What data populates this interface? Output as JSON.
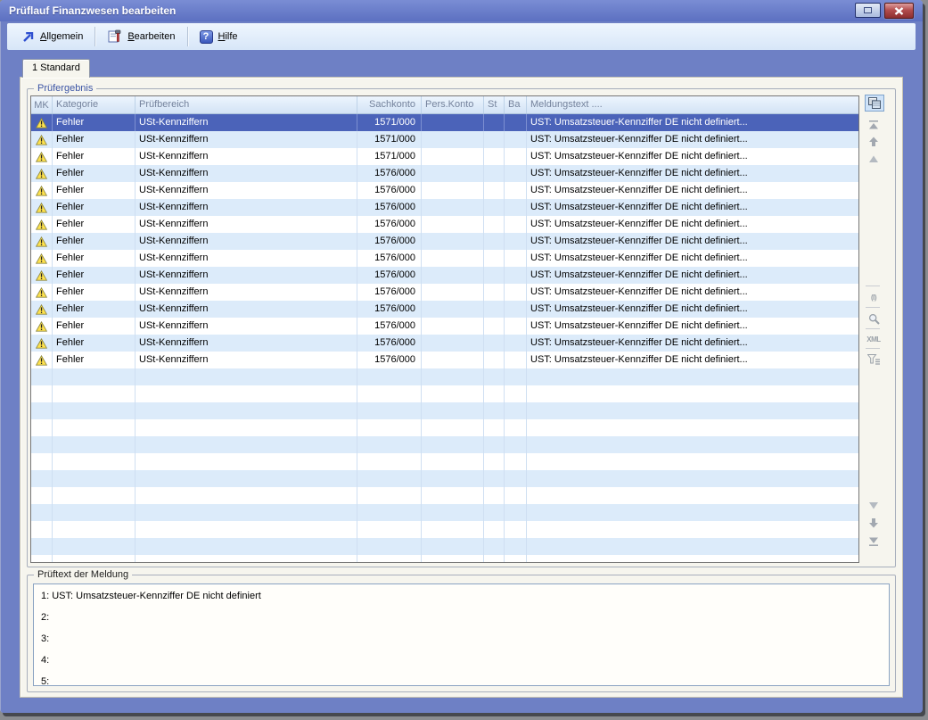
{
  "window": {
    "title": "Prüflauf Finanzwesen bearbeiten"
  },
  "toolbar": {
    "items": [
      {
        "name": "allgemein",
        "mnemonic": "A",
        "rest": "llgemein",
        "icon": "arrow-up-right-icon"
      },
      {
        "name": "bearbeiten",
        "mnemonic": "B",
        "rest": "earbeiten",
        "icon": "edit-tool-icon"
      },
      {
        "name": "hilfe",
        "mnemonic": "H",
        "rest": "ilfe",
        "icon": "help-icon",
        "glyph": "?"
      }
    ]
  },
  "tab": {
    "label": "1 Standard"
  },
  "result_group": {
    "title": "Prüfergebnis",
    "columns": [
      "MK",
      "Kategorie",
      "Prüfbereich",
      "Sachkonto",
      "Pers.Konto",
      "St",
      "Ba",
      "Meldungstext ...."
    ],
    "rows": [
      {
        "selected": true,
        "mk": "warning",
        "kategorie": "Fehler",
        "pruefbereich": "USt-Kennziffern",
        "sachkonto": "1571/000",
        "pers_konto": "",
        "st": "",
        "ba": "",
        "meldungstext": "UST: Umsatzsteuer-Kennziffer DE nicht definiert..."
      },
      {
        "selected": false,
        "mk": "warning",
        "kategorie": "Fehler",
        "pruefbereich": "USt-Kennziffern",
        "sachkonto": "1571/000",
        "pers_konto": "",
        "st": "",
        "ba": "",
        "meldungstext": "UST: Umsatzsteuer-Kennziffer DE nicht definiert..."
      },
      {
        "selected": false,
        "mk": "warning",
        "kategorie": "Fehler",
        "pruefbereich": "USt-Kennziffern",
        "sachkonto": "1571/000",
        "pers_konto": "",
        "st": "",
        "ba": "",
        "meldungstext": "UST: Umsatzsteuer-Kennziffer DE nicht definiert..."
      },
      {
        "selected": false,
        "mk": "warning",
        "kategorie": "Fehler",
        "pruefbereich": "USt-Kennziffern",
        "sachkonto": "1576/000",
        "pers_konto": "",
        "st": "",
        "ba": "",
        "meldungstext": "UST: Umsatzsteuer-Kennziffer DE nicht definiert..."
      },
      {
        "selected": false,
        "mk": "warning",
        "kategorie": "Fehler",
        "pruefbereich": "USt-Kennziffern",
        "sachkonto": "1576/000",
        "pers_konto": "",
        "st": "",
        "ba": "",
        "meldungstext": "UST: Umsatzsteuer-Kennziffer DE nicht definiert..."
      },
      {
        "selected": false,
        "mk": "warning",
        "kategorie": "Fehler",
        "pruefbereich": "USt-Kennziffern",
        "sachkonto": "1576/000",
        "pers_konto": "",
        "st": "",
        "ba": "",
        "meldungstext": "UST: Umsatzsteuer-Kennziffer DE nicht definiert..."
      },
      {
        "selected": false,
        "mk": "warning",
        "kategorie": "Fehler",
        "pruefbereich": "USt-Kennziffern",
        "sachkonto": "1576/000",
        "pers_konto": "",
        "st": "",
        "ba": "",
        "meldungstext": "UST: Umsatzsteuer-Kennziffer DE nicht definiert..."
      },
      {
        "selected": false,
        "mk": "warning",
        "kategorie": "Fehler",
        "pruefbereich": "USt-Kennziffern",
        "sachkonto": "1576/000",
        "pers_konto": "",
        "st": "",
        "ba": "",
        "meldungstext": "UST: Umsatzsteuer-Kennziffer DE nicht definiert..."
      },
      {
        "selected": false,
        "mk": "warning",
        "kategorie": "Fehler",
        "pruefbereich": "USt-Kennziffern",
        "sachkonto": "1576/000",
        "pers_konto": "",
        "st": "",
        "ba": "",
        "meldungstext": "UST: Umsatzsteuer-Kennziffer DE nicht definiert..."
      },
      {
        "selected": false,
        "mk": "warning",
        "kategorie": "Fehler",
        "pruefbereich": "USt-Kennziffern",
        "sachkonto": "1576/000",
        "pers_konto": "",
        "st": "",
        "ba": "",
        "meldungstext": "UST: Umsatzsteuer-Kennziffer DE nicht definiert..."
      },
      {
        "selected": false,
        "mk": "warning",
        "kategorie": "Fehler",
        "pruefbereich": "USt-Kennziffern",
        "sachkonto": "1576/000",
        "pers_konto": "",
        "st": "",
        "ba": "",
        "meldungstext": "UST: Umsatzsteuer-Kennziffer DE nicht definiert..."
      },
      {
        "selected": false,
        "mk": "warning",
        "kategorie": "Fehler",
        "pruefbereich": "USt-Kennziffern",
        "sachkonto": "1576/000",
        "pers_konto": "",
        "st": "",
        "ba": "",
        "meldungstext": "UST: Umsatzsteuer-Kennziffer DE nicht definiert..."
      },
      {
        "selected": false,
        "mk": "warning",
        "kategorie": "Fehler",
        "pruefbereich": "USt-Kennziffern",
        "sachkonto": "1576/000",
        "pers_konto": "",
        "st": "",
        "ba": "",
        "meldungstext": "UST: Umsatzsteuer-Kennziffer DE nicht definiert..."
      },
      {
        "selected": false,
        "mk": "warning",
        "kategorie": "Fehler",
        "pruefbereich": "USt-Kennziffern",
        "sachkonto": "1576/000",
        "pers_konto": "",
        "st": "",
        "ba": "",
        "meldungstext": "UST: Umsatzsteuer-Kennziffer DE nicht definiert..."
      },
      {
        "selected": false,
        "mk": "warning",
        "kategorie": "Fehler",
        "pruefbereich": "USt-Kennziffern",
        "sachkonto": "1576/000",
        "pers_konto": "",
        "st": "",
        "ba": "",
        "meldungstext": "UST: Umsatzsteuer-Kennziffer DE nicht definiert..."
      }
    ],
    "empty_row_count": 13,
    "xml_icon_text": "XML"
  },
  "side_icons": [
    "copy-results-icon",
    "scroll-top-icon",
    "move-up-icon",
    "step-up-icon",
    "columns-icon",
    "search-icon",
    "xml-export-icon",
    "filter-icon",
    "step-down-icon",
    "move-down-icon",
    "scroll-bottom-icon"
  ],
  "message_group": {
    "title": "Prüftext der Meldung",
    "lines": [
      "1: UST: Umsatzsteuer-Kennziffer DE nicht definiert",
      "2:",
      "3:",
      "4:",
      "5:"
    ]
  },
  "colors": {
    "frame": "#6e80c5",
    "titlebar": "#5c70c1",
    "selected_row": "#4b63b9",
    "row_alt": "#dcebfa",
    "warning_yellow": "#ffe24d",
    "close_red": "#b44e4e",
    "panel_beige": "#f6f5ee",
    "group_label_blue": "#3c55a5"
  }
}
